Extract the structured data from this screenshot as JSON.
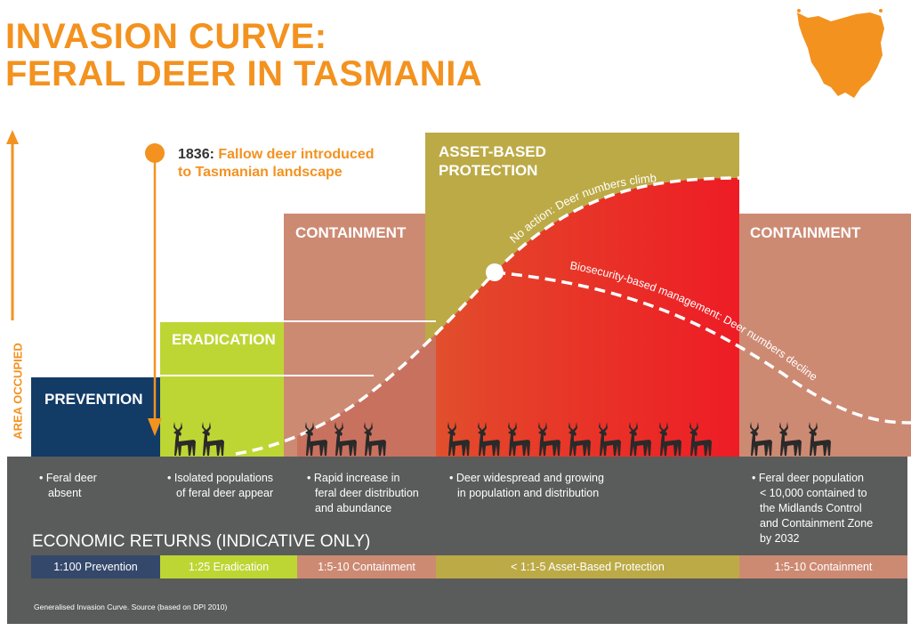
{
  "title_line1": "INVASION CURVE:",
  "title_line2": "FERAL DEER IN TASMANIA",
  "y_axis_label": "AREA OCCUPIED",
  "introduction": {
    "year": "1836:",
    "text_line1": "Fallow deer introduced",
    "text_line2": "to Tasmanian landscape"
  },
  "stages": [
    {
      "label": "PREVENTION",
      "color": "#123b66"
    },
    {
      "label": "ERADICATION",
      "color": "#bed634"
    },
    {
      "label": "CONTAINMENT",
      "color": "#cd8a73"
    },
    {
      "label_line1": "ASSET-BASED",
      "label_line2": "PROTECTION",
      "color": "#bcaa46"
    },
    {
      "label": "CONTAINMENT",
      "color": "#cd8a73"
    }
  ],
  "curves": {
    "no_action": "No action: Deer numbers climb",
    "managed": "Biosecurity-based management: Deer numbers decline"
  },
  "deer_counts": [
    0,
    2,
    3,
    9,
    3
  ],
  "descriptions": [
    [
      "• Feral deer",
      "absent"
    ],
    [
      "• Isolated populations",
      "of feral deer appear"
    ],
    [
      "• Rapid increase in",
      "feral deer distribution",
      "and abundance"
    ],
    [
      "• Deer widespread and growing",
      "in population and distribution"
    ],
    [
      "• Feral deer population",
      "< 10,000 contained to",
      "the Midlands Control",
      "and Containment Zone",
      "by 2032"
    ]
  ],
  "economic_returns": {
    "title": "ECONOMIC RETURNS (INDICATIVE ONLY)",
    "items": [
      "1:100 Prevention",
      "1:25 Eradication",
      "1:5-10 Containment",
      "< 1:1-5 Asset-Based Protection",
      "1:5-10 Containment"
    ]
  },
  "source": "Generalised Invasion Curve. Source (based on DPI 2010)",
  "colors": {
    "accent": "#f3921f",
    "band": "#5a5b5b",
    "red": "#ee1c25"
  }
}
